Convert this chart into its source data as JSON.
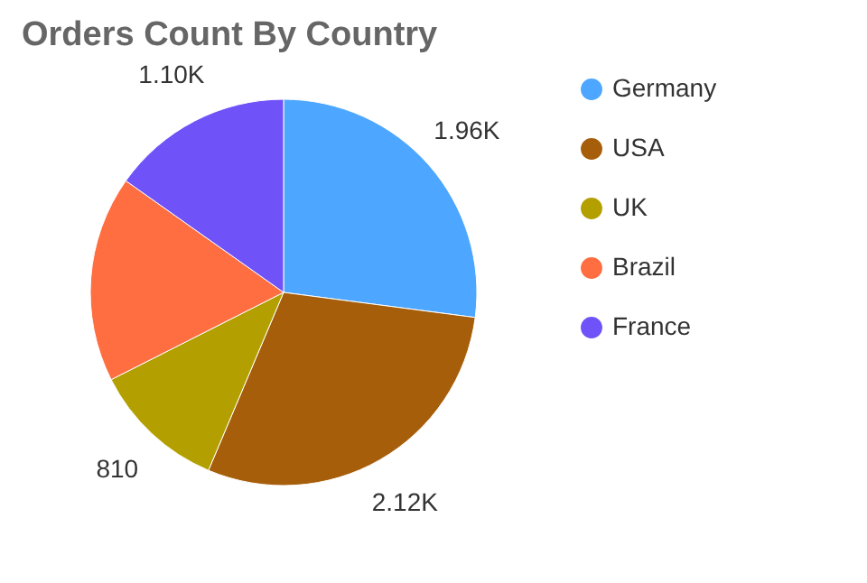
{
  "chart_data": {
    "type": "pie",
    "title": "Orders Count By Country",
    "categories": [
      "Germany",
      "USA",
      "UK",
      "Brazil",
      "France"
    ],
    "values": [
      1960,
      2120,
      810,
      1250,
      1100
    ],
    "value_labels": [
      "1.96K",
      "2.12K",
      "810",
      null,
      "1.10K"
    ],
    "colors": [
      "#4da6ff",
      "#a65e0a",
      "#b3a000",
      "#ff6e40",
      "#6f52f8"
    ],
    "legend": "right"
  }
}
